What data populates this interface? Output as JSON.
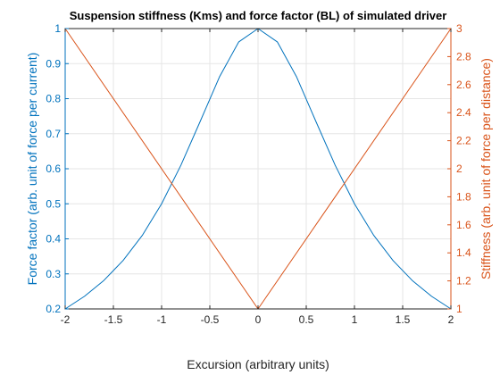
{
  "chart_data": {
    "type": "line",
    "title": "Suspension stiffness (Kms) and force factor (BL) of simulated driver",
    "xlabel": "Excursion (arbitrary units)",
    "ylabel_left": "Force factor (arb. unit of force per current)",
    "ylabel_right": "Stiffness (arb. unit of force per distance)",
    "xlim": [
      -2,
      2
    ],
    "ylim_left": [
      0.2,
      1
    ],
    "ylim_right": [
      1,
      3
    ],
    "x_ticks": [
      "-2",
      "-1.5",
      "-1",
      "-0.5",
      "0",
      "0.5",
      "1",
      "1.5",
      "2"
    ],
    "y_left_ticks": [
      "0.2",
      "0.3",
      "0.4",
      "0.5",
      "0.6",
      "0.7",
      "0.8",
      "0.9",
      "1"
    ],
    "y_right_ticks": [
      "1",
      "1.2",
      "1.4",
      "1.6",
      "1.8",
      "2",
      "2.2",
      "2.4",
      "2.6",
      "2.8",
      "3"
    ],
    "grid": true,
    "colors": {
      "left_axis": "#0072bd",
      "right_axis": "#d95319",
      "grid": "#e6e6e6",
      "frame": "#262626"
    },
    "series": [
      {
        "axis": "left",
        "color": "#0072bd",
        "x": [
          -2,
          -1.8,
          -1.6,
          -1.4,
          -1.2,
          -1.0,
          -0.8,
          -0.6,
          -0.4,
          -0.2,
          0,
          0.2,
          0.4,
          0.6,
          0.8,
          1.0,
          1.2,
          1.4,
          1.6,
          1.8,
          2
        ],
        "y": [
          0.2,
          0.236,
          0.281,
          0.338,
          0.41,
          0.5,
          0.61,
          0.735,
          0.862,
          0.962,
          1.0,
          0.962,
          0.862,
          0.735,
          0.61,
          0.5,
          0.41,
          0.338,
          0.281,
          0.236,
          0.2
        ]
      },
      {
        "axis": "right",
        "color": "#d95319",
        "x": [
          -2,
          0,
          2
        ],
        "y": [
          3,
          1,
          3
        ]
      }
    ]
  }
}
